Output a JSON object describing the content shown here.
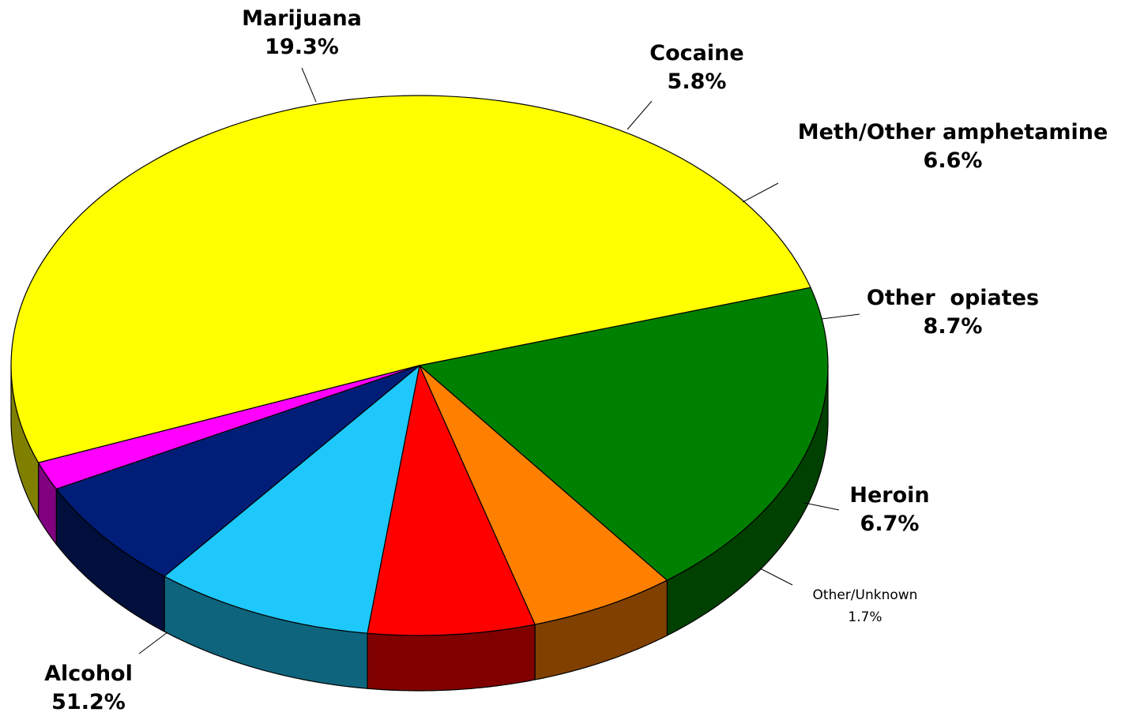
{
  "chart_data": {
    "type": "pie",
    "title": "",
    "style": "3d",
    "slices": [
      {
        "label": "Alcohol",
        "value": 51.2,
        "value_text": "51.2%",
        "color": "#FFFF00",
        "side_color": "#808000"
      },
      {
        "label": "Marijuana",
        "value": 19.3,
        "value_text": "19.3%",
        "color": "#008000",
        "side_color": "#004000"
      },
      {
        "label": "Cocaine",
        "value": 5.8,
        "value_text": "5.8%",
        "color": "#FF8000",
        "side_color": "#804000"
      },
      {
        "label": "Meth/Other amphetamine",
        "value": 6.6,
        "value_text": "6.6%",
        "color": "#FF0000",
        "side_color": "#800000"
      },
      {
        "label": "Other  opiates",
        "value": 8.7,
        "value_text": "8.7%",
        "color": "#1EC8FA",
        "side_color": "#0F647D"
      },
      {
        "label": "Heroin",
        "value": 6.7,
        "value_text": "6.7%",
        "color": "#001E78",
        "side_color": "#000F3C"
      },
      {
        "label": "Other/Unknown",
        "value": 1.7,
        "value_text": "1.7%",
        "color": "#FF00FF",
        "side_color": "#800080"
      }
    ]
  }
}
